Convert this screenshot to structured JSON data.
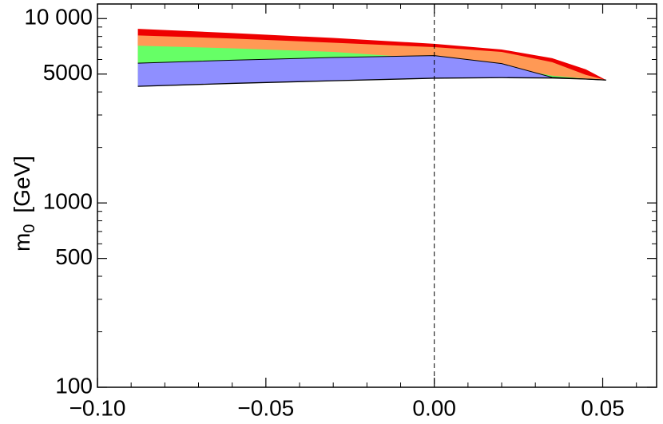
{
  "chart_data": {
    "type": "area",
    "y_label": "m",
    "y_label_sub": "0",
    "y_label_unit": "[GeV]",
    "x": [
      -0.088,
      -0.06,
      -0.03,
      0,
      0.02,
      0.035,
      0.045,
      0.051
    ],
    "lower": [
      4290,
      4450,
      4600,
      4750,
      4780,
      4760,
      4700,
      4640
    ],
    "series": [
      {
        "color": "#ee0000",
        "values": [
          8800,
          8350,
          7850,
          7300,
          6800,
          6100,
          5300,
          4640
        ]
      },
      {
        "color": "#ff9955",
        "values": [
          8100,
          7800,
          7400,
          7000,
          6600,
          5800,
          4950,
          4640
        ]
      },
      {
        "color": "#66ff66",
        "values": [
          7130,
          6900,
          6600,
          6050,
          5500,
          4900,
          4720,
          4640
        ]
      },
      {
        "color": "#8f8fff",
        "values": [
          5730,
          5950,
          6150,
          6300,
          5700,
          4800,
          4700,
          4640
        ]
      }
    ],
    "xlim": [
      -0.1,
      0.066
    ],
    "ylim": [
      100,
      12000
    ],
    "log_y": true,
    "xticks": [
      {
        "value": -0.1,
        "label": "−0.10"
      },
      {
        "value": -0.05,
        "label": "−0.05"
      },
      {
        "value": 0,
        "label": "0.00"
      },
      {
        "value": 0.05,
        "label": "0.05"
      }
    ],
    "xminorticks": [
      -0.09,
      -0.08,
      -0.07,
      -0.06,
      -0.04,
      -0.03,
      -0.02,
      -0.01,
      0.01,
      0.02,
      0.03,
      0.04,
      0.06
    ],
    "yticks": [
      100,
      500,
      1000,
      5000,
      {
        "value": 10000,
        "label": "10 000"
      }
    ],
    "yminorticks": [
      200,
      300,
      400,
      600,
      700,
      800,
      900,
      2000,
      3000,
      4000,
      6000,
      7000,
      8000,
      9000
    ],
    "reference_x": 0
  }
}
